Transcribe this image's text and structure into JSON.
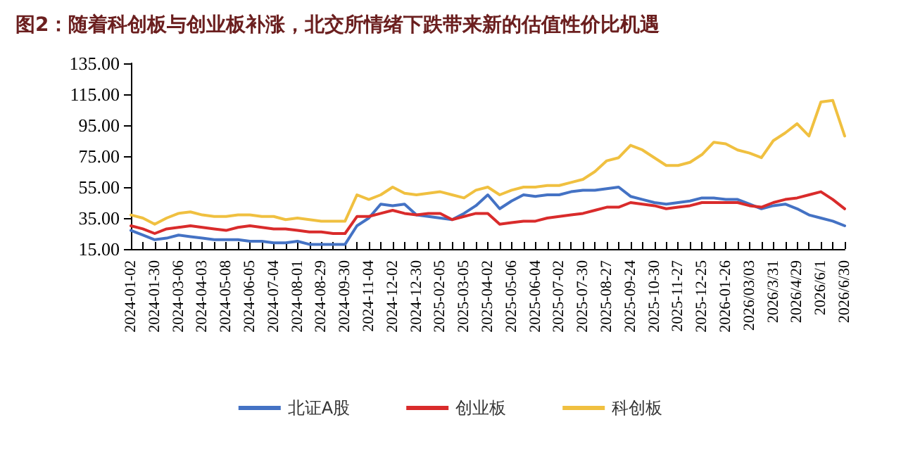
{
  "chart_data": {
    "type": "line",
    "title": "图2：随着科创板与创业板补涨，北交所情绪下跌带来新的估值性价比机遇",
    "categories": [
      "2024-01-02",
      null,
      "2024-01-30",
      null,
      "2024-03-06",
      null,
      "2024-04-03",
      null,
      "2024-05-08",
      null,
      "2024-06-05",
      null,
      "2024-07-04",
      null,
      "2024-08-01",
      null,
      "2024-08-29",
      null,
      "2024-09-30",
      null,
      "2024-11-04",
      null,
      "2024-12-02",
      null,
      "2024-12-30",
      null,
      "2025-02-05",
      null,
      "2025-03-05",
      null,
      "2025-04-02",
      null,
      "2025-05-06",
      null,
      "2025-06-04",
      null,
      "2025-07-02",
      null,
      "2025-07-30",
      null,
      "2025-08-27",
      null,
      "2025-09-24",
      null,
      "2025-10-30",
      null,
      "2025-11-27",
      null,
      "2025-12-25",
      null,
      "2026-01-26",
      null,
      "2026/03/03",
      null,
      "2026/3/31",
      null,
      "2026/4/29",
      null,
      "2026/6/1",
      null,
      "2026/6/30"
    ],
    "series": [
      {
        "name": "北证A股",
        "color": "#4472c4",
        "values": [
          27,
          24,
          21,
          22,
          24,
          23,
          22,
          21,
          21,
          21,
          20,
          20,
          19,
          19,
          20,
          18,
          18,
          18,
          18,
          30,
          35,
          44,
          43,
          44,
          37,
          36,
          35,
          34,
          38,
          43,
          50,
          41,
          46,
          50,
          49,
          50,
          50,
          52,
          53,
          53,
          54,
          55,
          49,
          47,
          45,
          44,
          45,
          46,
          48,
          48,
          47,
          47,
          44,
          41,
          43,
          44,
          41,
          37,
          35,
          33,
          30
        ]
      },
      {
        "name": "创业板",
        "color": "#d92b2b",
        "values": [
          30,
          28,
          25,
          28,
          29,
          30,
          29,
          28,
          27,
          29,
          30,
          29,
          28,
          28,
          27,
          26,
          26,
          25,
          25,
          36,
          36,
          38,
          40,
          38,
          37,
          38,
          38,
          34,
          36,
          38,
          38,
          31,
          32,
          33,
          33,
          35,
          36,
          37,
          38,
          40,
          42,
          42,
          45,
          44,
          43,
          41,
          42,
          43,
          45,
          45,
          45,
          45,
          43,
          42,
          45,
          47,
          48,
          50,
          52,
          47,
          41
        ]
      },
      {
        "name": "科创板",
        "color": "#f0c040",
        "values": [
          37,
          35,
          31,
          35,
          38,
          39,
          37,
          36,
          36,
          37,
          37,
          36,
          36,
          34,
          35,
          34,
          33,
          33,
          33,
          50,
          47,
          50,
          55,
          51,
          50,
          51,
          52,
          50,
          48,
          53,
          55,
          50,
          53,
          55,
          55,
          56,
          56,
          58,
          60,
          65,
          72,
          74,
          82,
          79,
          74,
          69,
          69,
          71,
          76,
          84,
          83,
          79,
          77,
          74,
          85,
          90,
          96,
          88,
          110,
          111,
          88
        ]
      }
    ],
    "ylim": [
      15,
      135
    ],
    "yticks": [
      {
        "value": 15,
        "label": "15.00"
      },
      {
        "value": 35,
        "label": "35.00"
      },
      {
        "value": 55,
        "label": "55.00"
      },
      {
        "value": 75,
        "label": "75.00"
      },
      {
        "value": 95,
        "label": "95.00"
      },
      {
        "value": 115,
        "label": "115.00"
      },
      {
        "value": 135,
        "label": "135.00"
      }
    ],
    "grid": false,
    "legend": "bottom",
    "marker": "none",
    "line_style": "solid"
  }
}
